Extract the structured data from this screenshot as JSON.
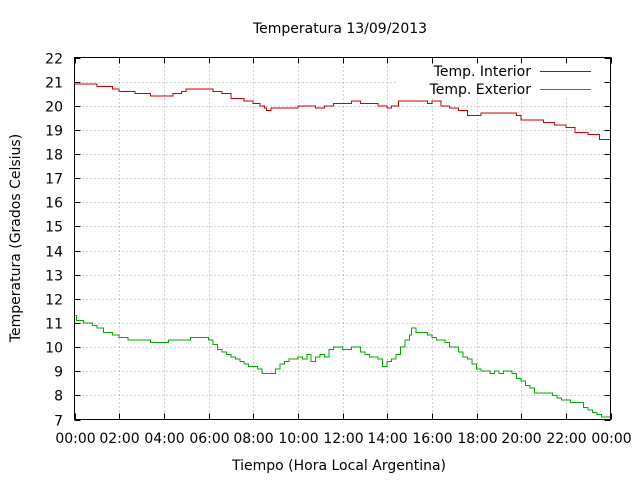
{
  "chart_data": {
    "type": "line",
    "title": "Temperatura 13/09/2013",
    "xlabel": "Tiempo (Hora Local Argentina)",
    "ylabel": "Temperatura (Grados Celsius)",
    "xlim": [
      0,
      24
    ],
    "ylim": [
      7,
      22
    ],
    "x_ticks": [
      {
        "value": 0,
        "label": "00:00"
      },
      {
        "value": 2,
        "label": "02:00"
      },
      {
        "value": 4,
        "label": "04:00"
      },
      {
        "value": 6,
        "label": "06:00"
      },
      {
        "value": 8,
        "label": "08:00"
      },
      {
        "value": 10,
        "label": "10:00"
      },
      {
        "value": 12,
        "label": "12:00"
      },
      {
        "value": 14,
        "label": "14:00"
      },
      {
        "value": 16,
        "label": "16:00"
      },
      {
        "value": 18,
        "label": "18:00"
      },
      {
        "value": 20,
        "label": "20:00"
      },
      {
        "value": 22,
        "label": "22:00"
      },
      {
        "value": 24,
        "label": "00:00"
      }
    ],
    "y_ticks": [
      7,
      8,
      9,
      10,
      11,
      12,
      13,
      14,
      15,
      16,
      17,
      18,
      19,
      20,
      21,
      22
    ],
    "grid": true,
    "legend_position": "top-right",
    "series": [
      {
        "name": "Temp. Interior",
        "color": "#cc0000",
        "points": [
          [
            0.0,
            20.9
          ],
          [
            0.8,
            20.9
          ],
          [
            1.0,
            20.8
          ],
          [
            1.5,
            20.8
          ],
          [
            1.7,
            20.7
          ],
          [
            2.0,
            20.6
          ],
          [
            2.5,
            20.6
          ],
          [
            2.7,
            20.5
          ],
          [
            3.2,
            20.5
          ],
          [
            3.4,
            20.4
          ],
          [
            4.0,
            20.4
          ],
          [
            4.4,
            20.5
          ],
          [
            4.8,
            20.6
          ],
          [
            5.0,
            20.7
          ],
          [
            6.0,
            20.7
          ],
          [
            6.2,
            20.6
          ],
          [
            6.6,
            20.5
          ],
          [
            7.0,
            20.3
          ],
          [
            7.6,
            20.2
          ],
          [
            8.0,
            20.1
          ],
          [
            8.3,
            20.0
          ],
          [
            8.5,
            19.9
          ],
          [
            8.6,
            19.8
          ],
          [
            8.8,
            19.9
          ],
          [
            9.2,
            19.9
          ],
          [
            9.6,
            19.9
          ],
          [
            10.0,
            20.0
          ],
          [
            10.4,
            20.0
          ],
          [
            10.8,
            19.9
          ],
          [
            11.2,
            20.0
          ],
          [
            11.6,
            20.1
          ],
          [
            12.0,
            20.1
          ],
          [
            12.4,
            20.2
          ],
          [
            12.8,
            20.1
          ],
          [
            13.2,
            20.1
          ],
          [
            13.6,
            20.0
          ],
          [
            14.0,
            19.9
          ],
          [
            14.2,
            20.0
          ],
          [
            14.5,
            20.2
          ],
          [
            15.0,
            20.2
          ],
          [
            15.5,
            20.2
          ],
          [
            15.8,
            20.1
          ],
          [
            16.0,
            20.2
          ],
          [
            16.4,
            20.0
          ],
          [
            16.8,
            19.9
          ],
          [
            17.2,
            19.8
          ],
          [
            17.6,
            19.6
          ],
          [
            18.0,
            19.6
          ],
          [
            18.2,
            19.7
          ],
          [
            19.0,
            19.7
          ],
          [
            19.8,
            19.6
          ],
          [
            20.0,
            19.4
          ],
          [
            21.0,
            19.3
          ],
          [
            21.5,
            19.2
          ],
          [
            22.0,
            19.1
          ],
          [
            22.4,
            18.9
          ],
          [
            23.0,
            18.8
          ],
          [
            23.5,
            18.6
          ],
          [
            24.0,
            18.5
          ]
        ]
      },
      {
        "name": "Temp. Exterior",
        "color": "#00aa00",
        "points": [
          [
            0.0,
            11.3
          ],
          [
            0.1,
            11.1
          ],
          [
            0.4,
            11.0
          ],
          [
            0.8,
            10.9
          ],
          [
            1.0,
            10.8
          ],
          [
            1.3,
            10.6
          ],
          [
            1.7,
            10.5
          ],
          [
            2.0,
            10.4
          ],
          [
            2.4,
            10.3
          ],
          [
            3.2,
            10.3
          ],
          [
            3.4,
            10.2
          ],
          [
            4.0,
            10.2
          ],
          [
            4.2,
            10.3
          ],
          [
            5.0,
            10.3
          ],
          [
            5.2,
            10.4
          ],
          [
            5.8,
            10.4
          ],
          [
            6.0,
            10.3
          ],
          [
            6.2,
            10.1
          ],
          [
            6.4,
            9.9
          ],
          [
            6.6,
            9.8
          ],
          [
            6.8,
            9.7
          ],
          [
            7.0,
            9.6
          ],
          [
            7.2,
            9.5
          ],
          [
            7.4,
            9.4
          ],
          [
            7.6,
            9.3
          ],
          [
            7.8,
            9.2
          ],
          [
            8.0,
            9.2
          ],
          [
            8.2,
            9.1
          ],
          [
            8.4,
            8.9
          ],
          [
            8.8,
            8.9
          ],
          [
            9.0,
            9.1
          ],
          [
            9.2,
            9.3
          ],
          [
            9.4,
            9.4
          ],
          [
            9.6,
            9.5
          ],
          [
            10.0,
            9.6
          ],
          [
            10.2,
            9.5
          ],
          [
            10.4,
            9.7
          ],
          [
            10.6,
            9.4
          ],
          [
            10.8,
            9.6
          ],
          [
            11.0,
            9.7
          ],
          [
            11.2,
            9.6
          ],
          [
            11.4,
            9.9
          ],
          [
            11.6,
            10.0
          ],
          [
            12.0,
            9.9
          ],
          [
            12.4,
            10.0
          ],
          [
            12.8,
            9.8
          ],
          [
            13.0,
            9.7
          ],
          [
            13.2,
            9.6
          ],
          [
            13.4,
            9.6
          ],
          [
            13.6,
            9.5
          ],
          [
            13.8,
            9.2
          ],
          [
            14.0,
            9.4
          ],
          [
            14.2,
            9.5
          ],
          [
            14.4,
            9.7
          ],
          [
            14.6,
            10.0
          ],
          [
            14.8,
            10.3
          ],
          [
            15.0,
            10.5
          ],
          [
            15.1,
            10.8
          ],
          [
            15.3,
            10.6
          ],
          [
            15.6,
            10.6
          ],
          [
            15.8,
            10.5
          ],
          [
            16.0,
            10.4
          ],
          [
            16.2,
            10.3
          ],
          [
            16.4,
            10.3
          ],
          [
            16.6,
            10.2
          ],
          [
            16.8,
            10.0
          ],
          [
            17.0,
            10.0
          ],
          [
            17.2,
            9.8
          ],
          [
            17.4,
            9.6
          ],
          [
            17.6,
            9.5
          ],
          [
            17.8,
            9.3
          ],
          [
            18.0,
            9.1
          ],
          [
            18.2,
            9.0
          ],
          [
            18.4,
            9.0
          ],
          [
            18.6,
            8.9
          ],
          [
            18.8,
            9.0
          ],
          [
            19.0,
            8.9
          ],
          [
            19.2,
            9.0
          ],
          [
            19.6,
            8.9
          ],
          [
            19.8,
            8.7
          ],
          [
            20.0,
            8.6
          ],
          [
            20.2,
            8.4
          ],
          [
            20.4,
            8.3
          ],
          [
            20.6,
            8.1
          ],
          [
            21.0,
            8.1
          ],
          [
            21.4,
            8.0
          ],
          [
            21.6,
            7.9
          ],
          [
            21.8,
            7.8
          ],
          [
            22.2,
            7.7
          ],
          [
            22.4,
            7.7
          ],
          [
            22.8,
            7.5
          ],
          [
            23.0,
            7.4
          ],
          [
            23.2,
            7.3
          ],
          [
            23.4,
            7.2
          ],
          [
            23.6,
            7.1
          ],
          [
            24.0,
            7.0
          ]
        ]
      }
    ]
  }
}
